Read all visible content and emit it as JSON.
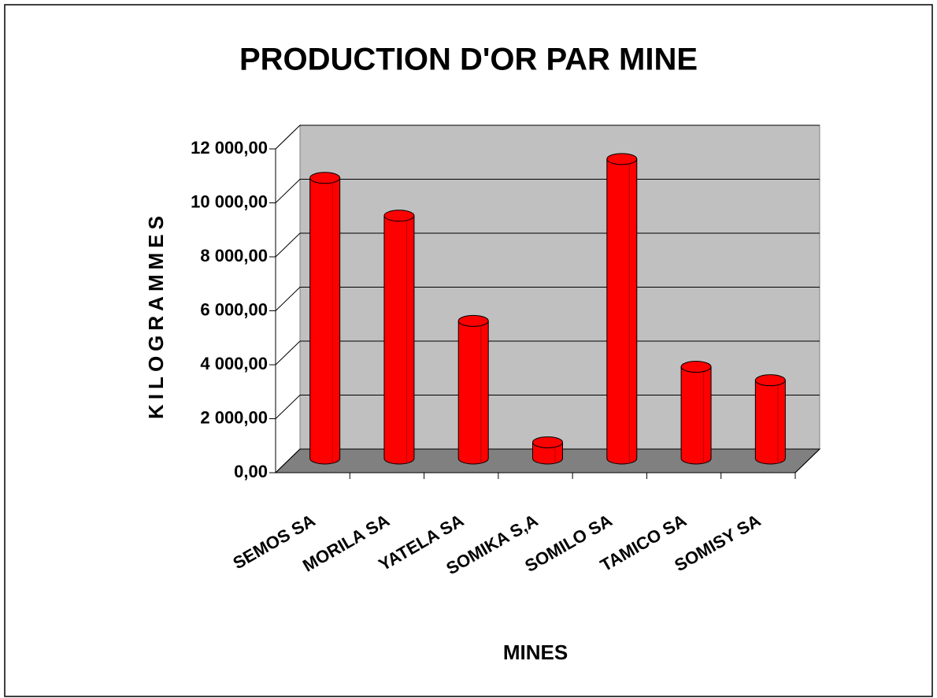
{
  "chart_data": {
    "type": "bar",
    "title": "PRODUCTION D'OR PAR MINE",
    "x_label": "MINES",
    "y_label": "KILOGRAMMES",
    "categories": [
      "SEMOS SA",
      "MORILA SA",
      "YATELA SA",
      "SOMIKA S,A",
      "SOMILO SA",
      "TAMICO SA",
      "SOMISY SA"
    ],
    "values": [
      10400,
      9000,
      5100,
      600,
      11100,
      3400,
      2900
    ],
    "color": "#ff0000",
    "ylim": [
      0,
      12000
    ],
    "yticks": [
      {
        "value": 0,
        "label": "0,00"
      },
      {
        "value": 2000,
        "label": "2 000,00"
      },
      {
        "value": 4000,
        "label": "4 000,00"
      },
      {
        "value": 6000,
        "label": "6 000,00"
      },
      {
        "value": 8000,
        "label": "8 000,00"
      },
      {
        "value": 10000,
        "label": "10 000,00"
      },
      {
        "value": 12000,
        "label": "12 000,00"
      }
    ],
    "grid": true
  }
}
